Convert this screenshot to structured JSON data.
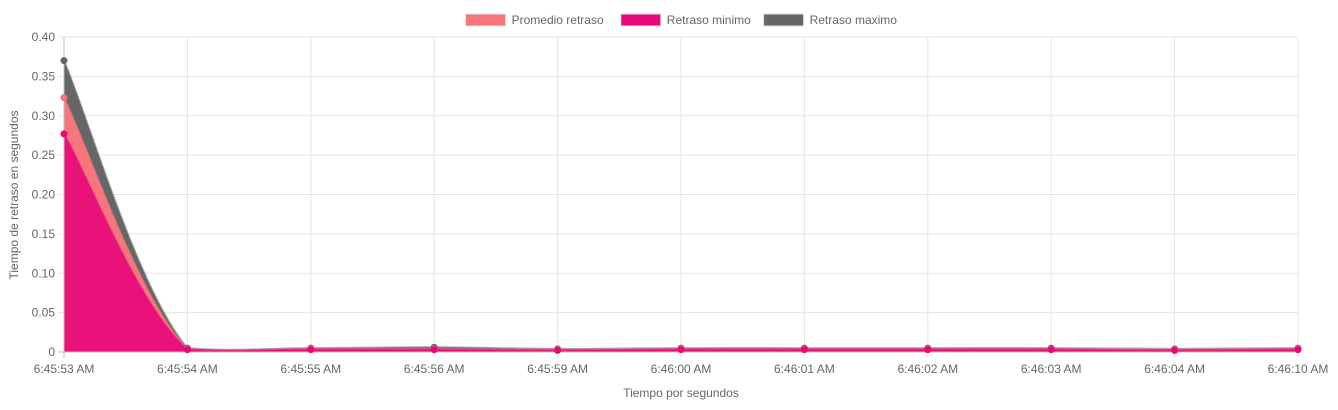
{
  "chart_data": {
    "type": "area",
    "title": "",
    "xlabel": "Tiempo por segundos",
    "ylabel": "Tiempo de retraso en segundos",
    "ylim": [
      0,
      0.4
    ],
    "y_ticks": [
      "0",
      "0.05",
      "0.10",
      "0.15",
      "0.20",
      "0.25",
      "0.30",
      "0.35",
      "0.40"
    ],
    "y_tick_values": [
      0,
      0.05,
      0.1,
      0.15,
      0.2,
      0.25,
      0.3,
      0.35,
      0.4
    ],
    "categories": [
      "6:45:53 AM",
      "6:45:54 AM",
      "6:45:55 AM",
      "6:45:56 AM",
      "6:45:59 AM",
      "6:46:00 AM",
      "6:46:01 AM",
      "6:46:02 AM",
      "6:46:03 AM",
      "6:46:04 AM",
      "6:46:10 AM"
    ],
    "grid": true,
    "legend_position": "top-center",
    "series": [
      {
        "name": "Promedio retraso",
        "color": "#f5777d",
        "fill": "#f5777d",
        "values": [
          0.323,
          0.004,
          0.004,
          0.004,
          0.003,
          0.004,
          0.004,
          0.004,
          0.004,
          0.003,
          0.004
        ]
      },
      {
        "name": "Retraso minimo",
        "color": "#e8077a",
        "fill": "#e8077a",
        "values": [
          0.277,
          0.003,
          0.003,
          0.003,
          0.002,
          0.003,
          0.003,
          0.003,
          0.003,
          0.002,
          0.003
        ]
      },
      {
        "name": "Retraso maximo",
        "color": "#666666",
        "fill": "#666666",
        "values": [
          0.37,
          0.005,
          0.005,
          0.006,
          0.004,
          0.005,
          0.005,
          0.005,
          0.005,
          0.004,
          0.005
        ]
      }
    ]
  }
}
